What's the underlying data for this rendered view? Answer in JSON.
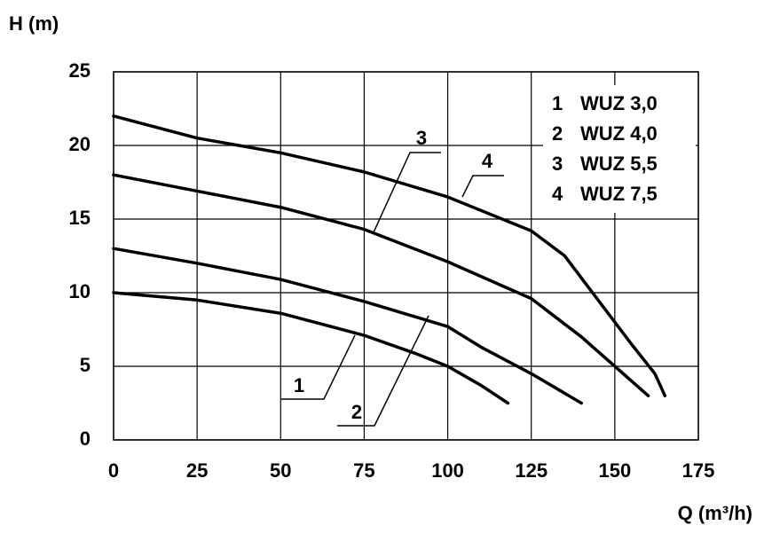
{
  "chart_data": {
    "type": "line",
    "y_label": "H (m)",
    "x_label": "Q (m³/h)",
    "xlim": [
      0,
      175
    ],
    "xticks": [
      0,
      25,
      50,
      75,
      100,
      125,
      150,
      175
    ],
    "ylim": [
      0,
      25
    ],
    "yticks": [
      0,
      5,
      10,
      15,
      20,
      25
    ],
    "grid": true,
    "legend": "upper right",
    "series": [
      {
        "label": "1",
        "name": "WUZ 3,0",
        "color": "#000000",
        "x": [
          0,
          25,
          50,
          75,
          90,
          100,
          110,
          118
        ],
        "values": [
          10,
          9.5,
          8.6,
          7.1,
          5.9,
          5.0,
          3.7,
          2.5
        ]
      },
      {
        "label": "2",
        "name": "WUZ 4,0",
        "color": "#000000",
        "x": [
          0,
          25,
          50,
          75,
          100,
          110,
          125,
          140
        ],
        "values": [
          13,
          12,
          10.9,
          9.4,
          7.7,
          6.3,
          4.5,
          2.5
        ]
      },
      {
        "label": "3",
        "name": "WUZ 5,5",
        "color": "#000000",
        "x": [
          0,
          25,
          50,
          75,
          100,
          125,
          140,
          150,
          160
        ],
        "values": [
          18,
          16.9,
          15.8,
          14.3,
          12.1,
          9.6,
          7,
          5,
          3
        ]
      },
      {
        "label": "4",
        "name": "WUZ 7,5",
        "color": "#000000",
        "x": [
          0,
          25,
          50,
          75,
          100,
          125,
          135,
          145,
          155,
          162,
          165
        ],
        "values": [
          22,
          20.5,
          19.5,
          18.2,
          16.5,
          14.2,
          12.5,
          9.5,
          6.5,
          4.5,
          3
        ]
      }
    ]
  }
}
